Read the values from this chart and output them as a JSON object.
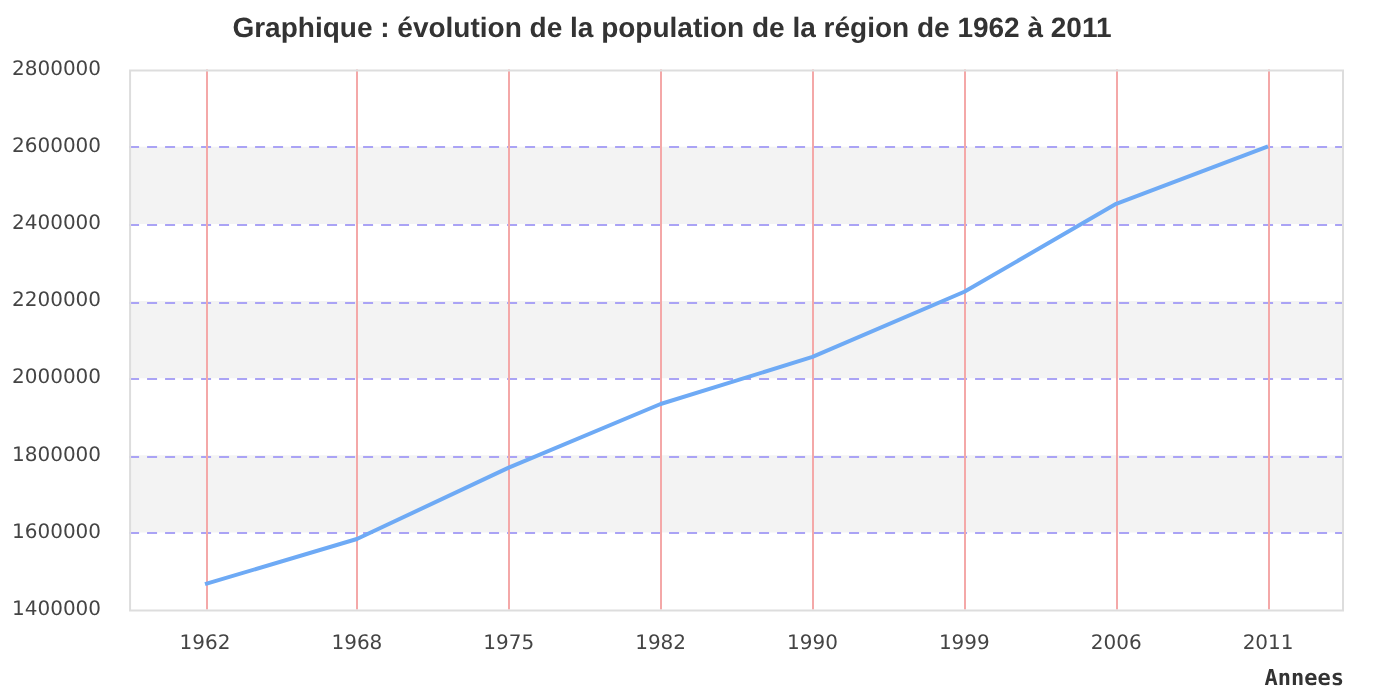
{
  "chart_data": {
    "type": "line",
    "title": "Graphique : évolution de la population de la région de 1962 à 2011",
    "xlabel": "Annees",
    "categories": [
      "1962",
      "1968",
      "1975",
      "1982",
      "1990",
      "1999",
      "2006",
      "2011"
    ],
    "series": [
      {
        "color": "#6eaaf5",
        "values": [
          1466000,
          1583000,
          1768000,
          1933000,
          2055000,
          2224000,
          2452000,
          2601000
        ]
      }
    ],
    "ylim": [
      1400000,
      2800000
    ],
    "yticks": [
      1400000,
      1600000,
      1800000,
      2000000,
      2200000,
      2400000,
      2600000,
      2800000
    ],
    "bands": [
      {
        "axis": "y",
        "from": 1600000,
        "to": 1800000,
        "color": "#f3f3f3"
      },
      {
        "axis": "y",
        "from": 2000000,
        "to": 2200000,
        "color": "#f3f3f3"
      },
      {
        "axis": "y",
        "from": 2400000,
        "to": 2600000,
        "color": "#f3f3f3"
      }
    ],
    "grid": true,
    "legend": false,
    "marker": "none",
    "line_style": "solid"
  }
}
